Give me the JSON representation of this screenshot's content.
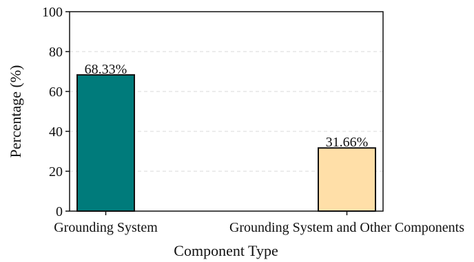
{
  "chart_data": {
    "type": "bar",
    "categories": [
      "Grounding System",
      "Grounding System and Other Components"
    ],
    "values": [
      68.33,
      31.66
    ],
    "value_labels": [
      "68.33%",
      "31.66%"
    ],
    "bar_colors": [
      "#007b7b",
      "#ffdfa8"
    ],
    "bar_edge_color": "#111111",
    "xlabel": "Component Type",
    "ylabel": "Percentage (%)",
    "ylim": [
      0,
      100
    ],
    "yticks": [
      "0",
      "20",
      "40",
      "60",
      "80",
      "100"
    ],
    "grid": "horizontal dashed"
  }
}
